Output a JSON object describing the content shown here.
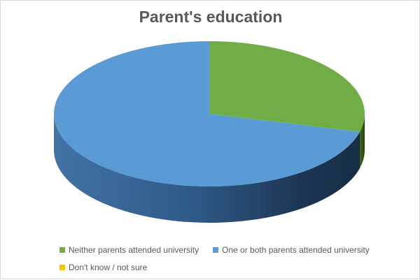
{
  "chart_data": {
    "type": "pie",
    "style": "3d",
    "title": "Parent's education",
    "categories": [
      "Neither parents attended university",
      "One or both parents attended university",
      "Don't know / not sure"
    ],
    "values": [
      29,
      71,
      0
    ],
    "colors": [
      "#70ad47",
      "#5b9bd5",
      "#ffc000"
    ],
    "legend_position": "bottom"
  }
}
